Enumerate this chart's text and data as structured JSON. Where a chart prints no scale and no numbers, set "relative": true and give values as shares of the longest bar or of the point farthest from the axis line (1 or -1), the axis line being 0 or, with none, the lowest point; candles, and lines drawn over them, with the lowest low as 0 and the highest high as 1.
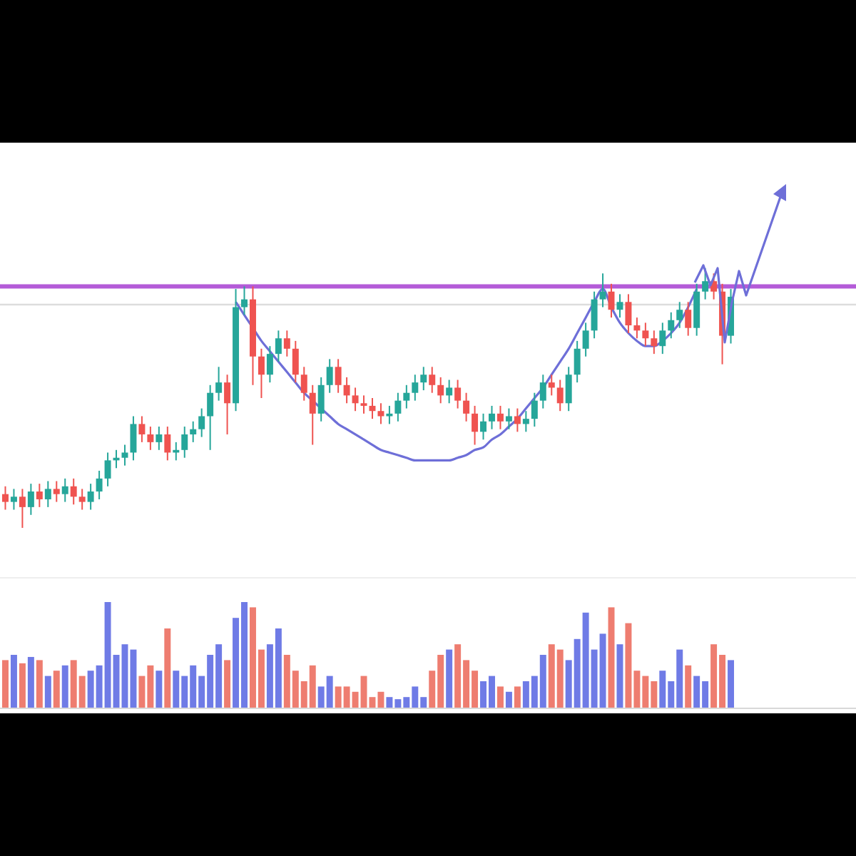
{
  "chart_data": [
    {
      "type": "candlestick",
      "relative": true,
      "categories": [
        null,
        null,
        null,
        null,
        null,
        null,
        null,
        null,
        null,
        null,
        null,
        null,
        null,
        null,
        null,
        null,
        null,
        null,
        null,
        null,
        null,
        null,
        null,
        null,
        null,
        null,
        null,
        null,
        null,
        null,
        null,
        null,
        null,
        null,
        null,
        null,
        null,
        null,
        null,
        null,
        null,
        null,
        null,
        null,
        null,
        null,
        null,
        null,
        null,
        null,
        null,
        null,
        null,
        null,
        null,
        null,
        null,
        null,
        null,
        null,
        null,
        null,
        null,
        null,
        null,
        null,
        null,
        null,
        null,
        null,
        null,
        null,
        null,
        null,
        null,
        null,
        null,
        null,
        null,
        null,
        null,
        null,
        null,
        null,
        null,
        null
      ],
      "ohlc": [
        [
          0.13,
          0.16,
          0.07,
          0.1
        ],
        [
          0.1,
          0.15,
          0.07,
          0.12
        ],
        [
          0.12,
          0.15,
          0,
          0.08
        ],
        [
          0.08,
          0.17,
          0.05,
          0.14
        ],
        [
          0.14,
          0.17,
          0.08,
          0.11
        ],
        [
          0.11,
          0.18,
          0.08,
          0.15
        ],
        [
          0.15,
          0.18,
          0.1,
          0.13
        ],
        [
          0.13,
          0.19,
          0.1,
          0.16
        ],
        [
          0.16,
          0.19,
          0.09,
          0.12
        ],
        [
          0.12,
          0.15,
          0.07,
          0.1
        ],
        [
          0.1,
          0.17,
          0.07,
          0.14
        ],
        [
          0.14,
          0.22,
          0.11,
          0.19
        ],
        [
          0.19,
          0.29,
          0.16,
          0.26
        ],
        [
          0.26,
          0.3,
          0.23,
          0.27
        ],
        [
          0.27,
          0.32,
          0.24,
          0.29
        ],
        [
          0.29,
          0.43,
          0.26,
          0.4
        ],
        [
          0.4,
          0.43,
          0.33,
          0.36
        ],
        [
          0.36,
          0.39,
          0.3,
          0.33
        ],
        [
          0.33,
          0.39,
          0.3,
          0.36
        ],
        [
          0.36,
          0.39,
          0.26,
          0.29
        ],
        [
          0.29,
          0.33,
          0.26,
          0.3
        ],
        [
          0.3,
          0.39,
          0.27,
          0.36
        ],
        [
          0.36,
          0.41,
          0.33,
          0.38
        ],
        [
          0.38,
          0.46,
          0.35,
          0.43
        ],
        [
          0.43,
          0.55,
          0.3,
          0.52
        ],
        [
          0.52,
          0.62,
          0.49,
          0.56
        ],
        [
          0.56,
          0.59,
          0.36,
          0.48
        ],
        [
          0.48,
          0.92,
          0.45,
          0.85
        ],
        [
          0.85,
          0.93,
          0.82,
          0.88
        ],
        [
          0.88,
          0.93,
          0.55,
          0.66
        ],
        [
          0.66,
          0.69,
          0.5,
          0.59
        ],
        [
          0.59,
          0.7,
          0.56,
          0.67
        ],
        [
          0.67,
          0.76,
          0.64,
          0.73
        ],
        [
          0.73,
          0.76,
          0.66,
          0.69
        ],
        [
          0.69,
          0.72,
          0.56,
          0.59
        ],
        [
          0.59,
          0.62,
          0.49,
          0.52
        ],
        [
          0.52,
          0.55,
          0.32,
          0.44
        ],
        [
          0.44,
          0.58,
          0.41,
          0.55
        ],
        [
          0.55,
          0.65,
          0.52,
          0.62
        ],
        [
          0.62,
          0.65,
          0.52,
          0.55
        ],
        [
          0.55,
          0.58,
          0.48,
          0.51
        ],
        [
          0.51,
          0.54,
          0.45,
          0.48
        ],
        [
          0.48,
          0.51,
          0.44,
          0.47
        ],
        [
          0.47,
          0.5,
          0.42,
          0.45
        ],
        [
          0.45,
          0.48,
          0.4,
          0.43
        ],
        [
          0.43,
          0.47,
          0.4,
          0.44
        ],
        [
          0.44,
          0.52,
          0.41,
          0.49
        ],
        [
          0.49,
          0.55,
          0.46,
          0.52
        ],
        [
          0.52,
          0.59,
          0.49,
          0.56
        ],
        [
          0.56,
          0.62,
          0.53,
          0.59
        ],
        [
          0.59,
          0.62,
          0.52,
          0.55
        ],
        [
          0.55,
          0.58,
          0.48,
          0.51
        ],
        [
          0.51,
          0.57,
          0.48,
          0.54
        ],
        [
          0.54,
          0.57,
          0.46,
          0.49
        ],
        [
          0.49,
          0.52,
          0.41,
          0.44
        ],
        [
          0.44,
          0.47,
          0.32,
          0.37
        ],
        [
          0.37,
          0.44,
          0.34,
          0.41
        ],
        [
          0.41,
          0.47,
          0.38,
          0.44
        ],
        [
          0.44,
          0.47,
          0.38,
          0.41
        ],
        [
          0.41,
          0.46,
          0.38,
          0.43
        ],
        [
          0.43,
          0.46,
          0.37,
          0.4
        ],
        [
          0.4,
          0.45,
          0.37,
          0.42
        ],
        [
          0.42,
          0.52,
          0.39,
          0.49
        ],
        [
          0.49,
          0.59,
          0.46,
          0.56
        ],
        [
          0.56,
          0.59,
          0.51,
          0.54
        ],
        [
          0.54,
          0.57,
          0.45,
          0.48
        ],
        [
          0.48,
          0.62,
          0.45,
          0.59
        ],
        [
          0.59,
          0.72,
          0.56,
          0.69
        ],
        [
          0.69,
          0.79,
          0.66,
          0.76
        ],
        [
          0.76,
          0.91,
          0.73,
          0.88
        ],
        [
          0.88,
          0.98,
          0.85,
          0.91
        ],
        [
          0.91,
          0.94,
          0.81,
          0.84
        ],
        [
          0.84,
          0.9,
          0.81,
          0.87
        ],
        [
          0.87,
          0.9,
          0.75,
          0.78
        ],
        [
          0.78,
          0.81,
          0.73,
          0.76
        ],
        [
          0.76,
          0.79,
          0.7,
          0.73
        ],
        [
          0.73,
          0.76,
          0.67,
          0.7
        ],
        [
          0.7,
          0.79,
          0.67,
          0.76
        ],
        [
          0.76,
          0.83,
          0.73,
          0.8
        ],
        [
          0.8,
          0.87,
          0.77,
          0.84
        ],
        [
          0.84,
          0.87,
          0.74,
          0.77
        ],
        [
          0.77,
          0.94,
          0.74,
          0.91
        ],
        [
          0.91,
          1,
          0.88,
          0.95
        ],
        [
          0.95,
          0.98,
          0.88,
          0.91
        ],
        [
          0.91,
          0.94,
          0.63,
          0.74
        ],
        [
          0.74,
          0.92,
          0.71,
          0.89
        ]
      ],
      "colors": [
        "#ef5350",
        "#26a69a",
        "#ef5350",
        "#26a69a",
        "#ef5350",
        "#26a69a",
        "#ef5350",
        "#26a69a",
        "#ef5350",
        "#ef5350",
        "#26a69a",
        "#26a69a",
        "#26a69a",
        "#26a69a",
        "#26a69a",
        "#26a69a",
        "#ef5350",
        "#ef5350",
        "#26a69a",
        "#ef5350",
        "#26a69a",
        "#26a69a",
        "#26a69a",
        "#26a69a",
        "#26a69a",
        "#26a69a",
        "#ef5350",
        "#26a69a",
        "#26a69a",
        "#ef5350",
        "#ef5350",
        "#26a69a",
        "#26a69a",
        "#ef5350",
        "#ef5350",
        "#ef5350",
        "#ef5350",
        "#26a69a",
        "#26a69a",
        "#ef5350",
        "#ef5350",
        "#ef5350",
        "#ef5350",
        "#ef5350",
        "#ef5350",
        "#26a69a",
        "#26a69a",
        "#26a69a",
        "#26a69a",
        "#26a69a",
        "#ef5350",
        "#ef5350",
        "#26a69a",
        "#ef5350",
        "#ef5350",
        "#ef5350",
        "#26a69a",
        "#26a69a",
        "#ef5350",
        "#26a69a",
        "#ef5350",
        "#26a69a",
        "#26a69a",
        "#26a69a",
        "#ef5350",
        "#ef5350",
        "#26a69a",
        "#26a69a",
        "#26a69a",
        "#26a69a",
        "#26a69a",
        "#ef5350",
        "#26a69a",
        "#ef5350",
        "#ef5350",
        "#ef5350",
        "#ef5350",
        "#26a69a",
        "#26a69a",
        "#26a69a",
        "#ef5350",
        "#26a69a",
        "#26a69a",
        "#ef5350",
        "#ef5350",
        "#26a69a"
      ],
      "series": [
        {
          "type": "line",
          "color": "#6e6fd8",
          "values": [
            null,
            null,
            null,
            null,
            null,
            null,
            null,
            null,
            null,
            null,
            null,
            null,
            null,
            null,
            null,
            null,
            null,
            null,
            null,
            null,
            null,
            null,
            null,
            null,
            null,
            null,
            null,
            0.87,
            0.82,
            0.77,
            0.72,
            0.68,
            0.64,
            0.6,
            0.56,
            0.52,
            0.49,
            0.46,
            0.43,
            0.4,
            0.38,
            0.36,
            0.34,
            0.32,
            0.3,
            0.29,
            0.28,
            0.27,
            0.26,
            0.26,
            0.26,
            0.26,
            0.26,
            0.27,
            0.28,
            0.3,
            0.31,
            0.34,
            0.36,
            0.39,
            0.42,
            0.46,
            0.5,
            0.54,
            0.59,
            0.64,
            0.69,
            0.75,
            0.81,
            0.87,
            0.92,
            0.85,
            0.79,
            0.75,
            0.72,
            0.7,
            0.7,
            0.72,
            0.75,
            0.79,
            0.85,
            0.92,
            null,
            null,
            null,
            null
          ]
        }
      ],
      "ref_lines": [
        {
          "axis": "y",
          "value": 0.93,
          "label": null,
          "color": "#b45bd8"
        },
        {
          "axis": "y",
          "value": 0.86,
          "label": null,
          "color": "#dddddd"
        }
      ]
    },
    {
      "type": "bar",
      "relative": true,
      "categories": [
        null,
        null,
        null,
        null,
        null,
        null,
        null,
        null,
        null,
        null,
        null,
        null,
        null,
        null,
        null,
        null,
        null,
        null,
        null,
        null,
        null,
        null,
        null,
        null,
        null,
        null,
        null,
        null,
        null,
        null,
        null,
        null,
        null,
        null,
        null,
        null,
        null,
        null,
        null,
        null,
        null,
        null,
        null,
        null,
        null,
        null,
        null,
        null,
        null,
        null,
        null,
        null,
        null,
        null,
        null,
        null,
        null,
        null,
        null,
        null,
        null,
        null,
        null,
        null,
        null,
        null,
        null,
        null,
        null,
        null,
        null,
        null,
        null,
        null,
        null,
        null,
        null,
        null,
        null,
        null,
        null,
        null,
        null,
        null,
        null,
        null
      ],
      "values": [
        0.45,
        0.5,
        0.42,
        0.48,
        0.45,
        0.3,
        0.35,
        0.4,
        0.45,
        0.3,
        0.35,
        0.4,
        1.0,
        0.5,
        0.6,
        0.55,
        0.3,
        0.4,
        0.35,
        0.75,
        0.35,
        0.3,
        0.4,
        0.3,
        0.5,
        0.6,
        0.45,
        0.85,
        1.0,
        0.95,
        0.55,
        0.6,
        0.75,
        0.5,
        0.35,
        0.25,
        0.4,
        0.2,
        0.3,
        0.2,
        0.2,
        0.15,
        0.3,
        0.1,
        0.15,
        0.1,
        0.08,
        0.1,
        0.2,
        0.1,
        0.35,
        0.5,
        0.55,
        0.6,
        0.45,
        0.35,
        0.25,
        0.3,
        0.2,
        0.15,
        0.2,
        0.25,
        0.3,
        0.5,
        0.6,
        0.55,
        0.45,
        0.65,
        0.9,
        0.55,
        0.7,
        0.95,
        0.6,
        0.8,
        0.35,
        0.3,
        0.25,
        0.35,
        0.25,
        0.55,
        0.4,
        0.3,
        0.25,
        0.6,
        0.5,
        0.45
      ],
      "colors": [
        "#ee7d70",
        "#6f7be6",
        "#ee7d70",
        "#6f7be6",
        "#ee7d70",
        "#6f7be6",
        "#ee7d70",
        "#6f7be6",
        "#ee7d70",
        "#ee7d70",
        "#6f7be6",
        "#6f7be6",
        "#6f7be6",
        "#6f7be6",
        "#6f7be6",
        "#6f7be6",
        "#ee7d70",
        "#ee7d70",
        "#6f7be6",
        "#ee7d70",
        "#6f7be6",
        "#6f7be6",
        "#6f7be6",
        "#6f7be6",
        "#6f7be6",
        "#6f7be6",
        "#ee7d70",
        "#6f7be6",
        "#6f7be6",
        "#ee7d70",
        "#ee7d70",
        "#6f7be6",
        "#6f7be6",
        "#ee7d70",
        "#ee7d70",
        "#ee7d70",
        "#ee7d70",
        "#6f7be6",
        "#6f7be6",
        "#ee7d70",
        "#ee7d70",
        "#ee7d70",
        "#ee7d70",
        "#ee7d70",
        "#ee7d70",
        "#6f7be6",
        "#6f7be6",
        "#6f7be6",
        "#6f7be6",
        "#6f7be6",
        "#ee7d70",
        "#ee7d70",
        "#6f7be6",
        "#ee7d70",
        "#ee7d70",
        "#ee7d70",
        "#6f7be6",
        "#6f7be6",
        "#ee7d70",
        "#6f7be6",
        "#ee7d70",
        "#6f7be6",
        "#6f7be6",
        "#6f7be6",
        "#ee7d70",
        "#ee7d70",
        "#6f7be6",
        "#6f7be6",
        "#6f7be6",
        "#6f7be6",
        "#6f7be6",
        "#ee7d70",
        "#6f7be6",
        "#ee7d70",
        "#ee7d70",
        "#ee7d70",
        "#ee7d70",
        "#6f7be6",
        "#6f7be6",
        "#6f7be6",
        "#ee7d70",
        "#6f7be6",
        "#6f7be6",
        "#ee7d70",
        "#ee7d70",
        "#6f7be6"
      ]
    }
  ]
}
